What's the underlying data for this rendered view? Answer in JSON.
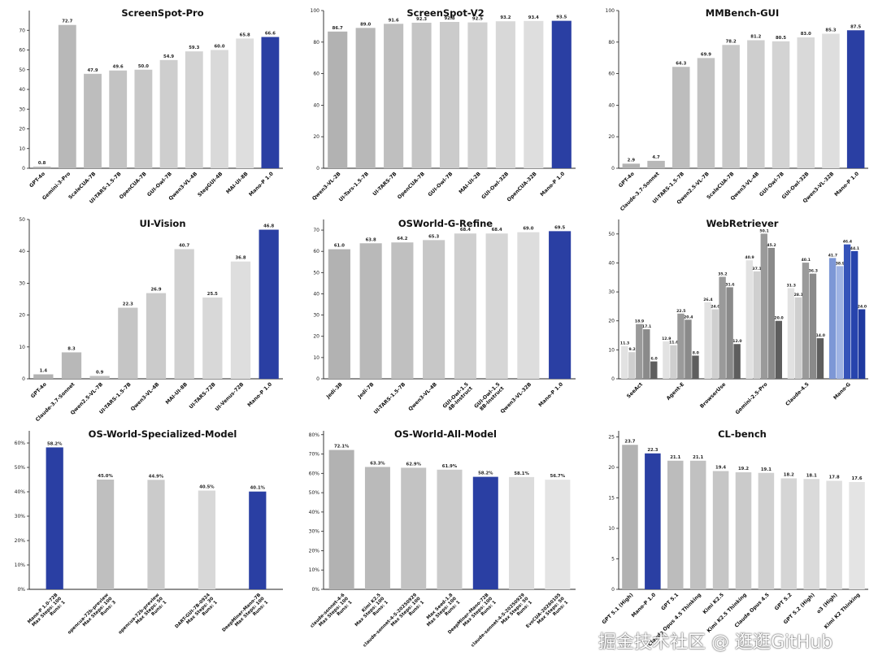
{
  "watermark": "掘金技术社区 @ 逛逛GitHub",
  "colors": {
    "highlight": "#2a3fa3",
    "bar_gray": "#c8c8c8"
  },
  "chart_data": [
    {
      "type": "bar",
      "title": "ScreenSpot-Pro",
      "ylim": [
        0,
        80
      ],
      "yticks": [
        0,
        10,
        20,
        30,
        40,
        50,
        60,
        70
      ],
      "categories": [
        "GPT-4o",
        "Gemini-3-Pro",
        "ScaleCUA-7B",
        "UI-TARS-1.5-7B",
        "OpenCUA-7B",
        "GUI-Owl-7B",
        "Qwen3-VL-4B",
        "StepGUI-4B",
        "MAI-UI-8B",
        "Mano-P 1.0"
      ],
      "values": [
        0.8,
        72.7,
        47.9,
        49.6,
        50.0,
        54.9,
        59.3,
        60.0,
        65.8,
        66.6
      ],
      "labels": [
        "0.8",
        "72.7",
        "47.9",
        "49.6",
        "50.0",
        "54.9",
        "59.3",
        "60.0",
        "65.8",
        "66.6"
      ],
      "highlight": [
        9
      ]
    },
    {
      "type": "bar",
      "title": "ScreenSpot-V2",
      "ylim": [
        0,
        100
      ],
      "yticks": [
        0,
        20,
        40,
        60,
        80,
        100
      ],
      "categories": [
        "Qwen3-VL-2B",
        "UI-Tars-1.5-7B",
        "UI-TARS-7B",
        "OpenCUA-7B",
        "GUI-Owl-7B",
        "MAI-UI-2B",
        "GUI-Owl-32B",
        "OpenCUA-32B",
        "Mano-P 1.0"
      ],
      "values": [
        86.7,
        89.0,
        91.6,
        92.3,
        92.8,
        92.5,
        93.2,
        93.4,
        93.5
      ],
      "labels": [
        "86.7",
        "89.0",
        "91.6",
        "92.3",
        "92.8",
        "92.5",
        "93.2",
        "93.4",
        "93.5"
      ],
      "highlight": [
        8
      ]
    },
    {
      "type": "bar",
      "title": "MMBench-GUI",
      "ylim": [
        0,
        100
      ],
      "yticks": [
        0,
        20,
        40,
        60,
        80,
        100
      ],
      "categories": [
        "GPT-4o",
        "Claude-3.7-Sonnet",
        "UI-TARS-1.5-7B",
        "Qwen2.5-VL-7B",
        "ScaleCUA-7B",
        "Qwen3-VL-4B",
        "GUI-Owl-7B",
        "GUI-Owl-32B",
        "Qwen3-VL-32B",
        "Mano-P 1.0"
      ],
      "values": [
        2.9,
        4.7,
        64.3,
        69.9,
        78.2,
        81.2,
        80.5,
        83.0,
        85.3,
        87.5
      ],
      "labels": [
        "2.9",
        "4.7",
        "64.3",
        "69.9",
        "78.2",
        "81.2",
        "80.5",
        "83.0",
        "85.3",
        "87.5"
      ],
      "highlight": [
        9
      ]
    },
    {
      "type": "bar",
      "title": "UI-Vision",
      "ylim": [
        0,
        50
      ],
      "yticks": [
        0,
        10,
        20,
        30,
        40,
        50
      ],
      "categories": [
        "GPT-4o",
        "Claude-3.7-Sonnet",
        "Qwen2.5-VL-7B",
        "UI-TARS-1.5-7B",
        "Qwen3-VL-4B",
        "MAI-UI-8B",
        "UI-TARS-72B",
        "UI-Venus-72B",
        "Mano-P 1.0"
      ],
      "values": [
        1.4,
        8.3,
        0.9,
        22.3,
        26.9,
        40.7,
        25.5,
        36.8,
        46.8
      ],
      "labels": [
        "1.4",
        "8.3",
        "0.9",
        "22.3",
        "26.9",
        "40.7",
        "25.5",
        "36.8",
        "46.8"
      ],
      "highlight": [
        8
      ]
    },
    {
      "type": "bar",
      "title": "OSWorld-G-Refine",
      "ylim": [
        0,
        75
      ],
      "yticks": [
        0,
        10,
        20,
        30,
        40,
        50,
        60,
        70
      ],
      "categories": [
        "Jedi-3B",
        "Jedi-7B",
        "UI-TARS-1.5-7B",
        "Qwen3-VL-4B",
        "GUI-Owl-1.5\n4B-Instruct",
        "GUI-Owl-1.5\n8B-Instruct",
        "Qwen3-VL-32B",
        "Mano-P 1.0"
      ],
      "values": [
        61.0,
        63.8,
        64.2,
        65.3,
        68.4,
        68.4,
        69.0,
        69.5
      ],
      "labels": [
        "61.0",
        "63.8",
        "64.2",
        "65.3",
        "68.4",
        "68.4",
        "69.0",
        "69.5"
      ],
      "highlight": [
        7
      ]
    },
    {
      "type": "grouped_bar",
      "title": "WebRetriever",
      "ylim": [
        0,
        55
      ],
      "yticks": [
        0,
        10,
        20,
        30,
        40,
        50
      ],
      "categories": [
        "SeeAct",
        "Agent-E",
        "BrowserUse",
        "Gemini-2.5-Pro",
        "Claude-4.5",
        "Mano-G"
      ],
      "groups": [
        {
          "values": [
            11.3,
            9.2,
            18.9,
            17.1,
            6.0
          ],
          "labels": [
            "11.3",
            "9.2",
            "18.9",
            "17.1",
            "6.0"
          ]
        },
        {
          "values": [
            12.9,
            11.6,
            22.5,
            20.4,
            8.0
          ],
          "labels": [
            "12.9",
            "11.6",
            "22.5",
            "20.4",
            "8.0"
          ]
        },
        {
          "values": [
            26.4,
            24.0,
            35.2,
            31.6,
            12.0
          ],
          "labels": [
            "26.4",
            "24.0",
            "35.2",
            "31.6",
            "12.0"
          ]
        },
        {
          "values": [
            40.9,
            37.1,
            50.1,
            45.2,
            20.0
          ],
          "labels": [
            "40.9",
            "37.1",
            "50.1",
            "45.2",
            "20.0"
          ]
        },
        {
          "values": [
            31.3,
            28.1,
            40.1,
            36.3,
            14.0
          ],
          "labels": [
            "31.3",
            "28.1",
            "40.1",
            "36.3",
            "14.0"
          ]
        },
        {
          "values": [
            41.7,
            38.9,
            46.4,
            44.1,
            24.0
          ],
          "labels": [
            "41.7",
            "38.9",
            "46.4",
            "44.1",
            "24.0"
          ]
        }
      ],
      "shades": [
        "#e2e2e2",
        "#cfcfcf",
        "#9a9a9a",
        "#8a8a8a",
        "#5e5e5e"
      ],
      "blue_shades": [
        "#7d97d6",
        "#9fb3e4",
        "#3553b9",
        "#2744ad",
        "#1f3aa0"
      ],
      "highlight": [
        5
      ]
    },
    {
      "type": "bar",
      "title": "OS-World-Specialized-Model",
      "ylim": [
        0,
        65
      ],
      "yticks": [
        0,
        10,
        20,
        30,
        40,
        50,
        60
      ],
      "percent": true,
      "categories": [
        "Mano-P 1.0-72B\nMax Steps: 100\nRuns: 1",
        "opencua-72b-preview\nMax Steps: 100\nRuns: 3",
        "opencua-72b-preview\nMax Steps: 50\nRuns: 1",
        "DART-GUI-7B-0924\nMax Steps: 30\nRuns: 1",
        "DeepMiner-Mano-7B\nMax Steps: 100\nRuns: 1"
      ],
      "values": [
        58.2,
        45.0,
        44.9,
        40.5,
        40.1
      ],
      "labels": [
        "58.2%",
        "45.0%",
        "44.9%",
        "40.5%",
        "40.1%"
      ],
      "highlight": [
        0,
        4
      ]
    },
    {
      "type": "bar",
      "title": "OS-World-All-Model",
      "ylim": [
        0,
        82
      ],
      "yticks": [
        0,
        10,
        20,
        30,
        40,
        50,
        60,
        70,
        80
      ],
      "percent": true,
      "categories": [
        "claude-sonnet-4-6\nMax Steps: 100\nRuns: 1",
        "Kimi K2.5\nMax Steps: 100\nRuns: 1",
        "claude-sonnet-4-5-20250929\nMax Steps: 100\nRuns: 1",
        "Max Seed-1.8\nMax Steps: 100\nRuns: 1",
        "DeepMiner-Mano-72B\nMax Steps: 100\nRuns: 1",
        "claude-sonnet-4-5-20250929\nMax Steps: 50\nRuns: 1",
        "EvoCUA-20260105\nMax Steps: 50\nRuns: 1"
      ],
      "values": [
        72.1,
        63.3,
        62.9,
        61.9,
        58.2,
        58.1,
        56.7
      ],
      "labels": [
        "72.1%",
        "63.3%",
        "62.9%",
        "61.9%",
        "58.2%",
        "58.1%",
        "56.7%"
      ],
      "highlight": [
        4
      ]
    },
    {
      "type": "bar",
      "title": "CL-bench",
      "ylim": [
        0,
        26
      ],
      "yticks": [
        0,
        5,
        10,
        15,
        20,
        25
      ],
      "categories": [
        "GPT 5.1 (High)",
        "Mano-P 1.0",
        "GPT 5.1",
        "Claude Opus 4.5 Thinking",
        "Kimi K2.5",
        "Kimi K2.5 Thinking",
        "Claude Opus 4.5",
        "GPT 5.2",
        "GPT 5.2 (High)",
        "o3 (High)",
        "Kimi K2 Thinking"
      ],
      "values": [
        23.7,
        22.3,
        21.1,
        21.1,
        19.4,
        19.2,
        19.1,
        18.2,
        18.1,
        17.8,
        17.6
      ],
      "labels": [
        "23.7",
        "22.3",
        "21.1",
        "21.1",
        "19.4",
        "19.2",
        "19.1",
        "18.2",
        "18.1",
        "17.8",
        "17.6"
      ],
      "highlight": [
        1
      ]
    }
  ]
}
